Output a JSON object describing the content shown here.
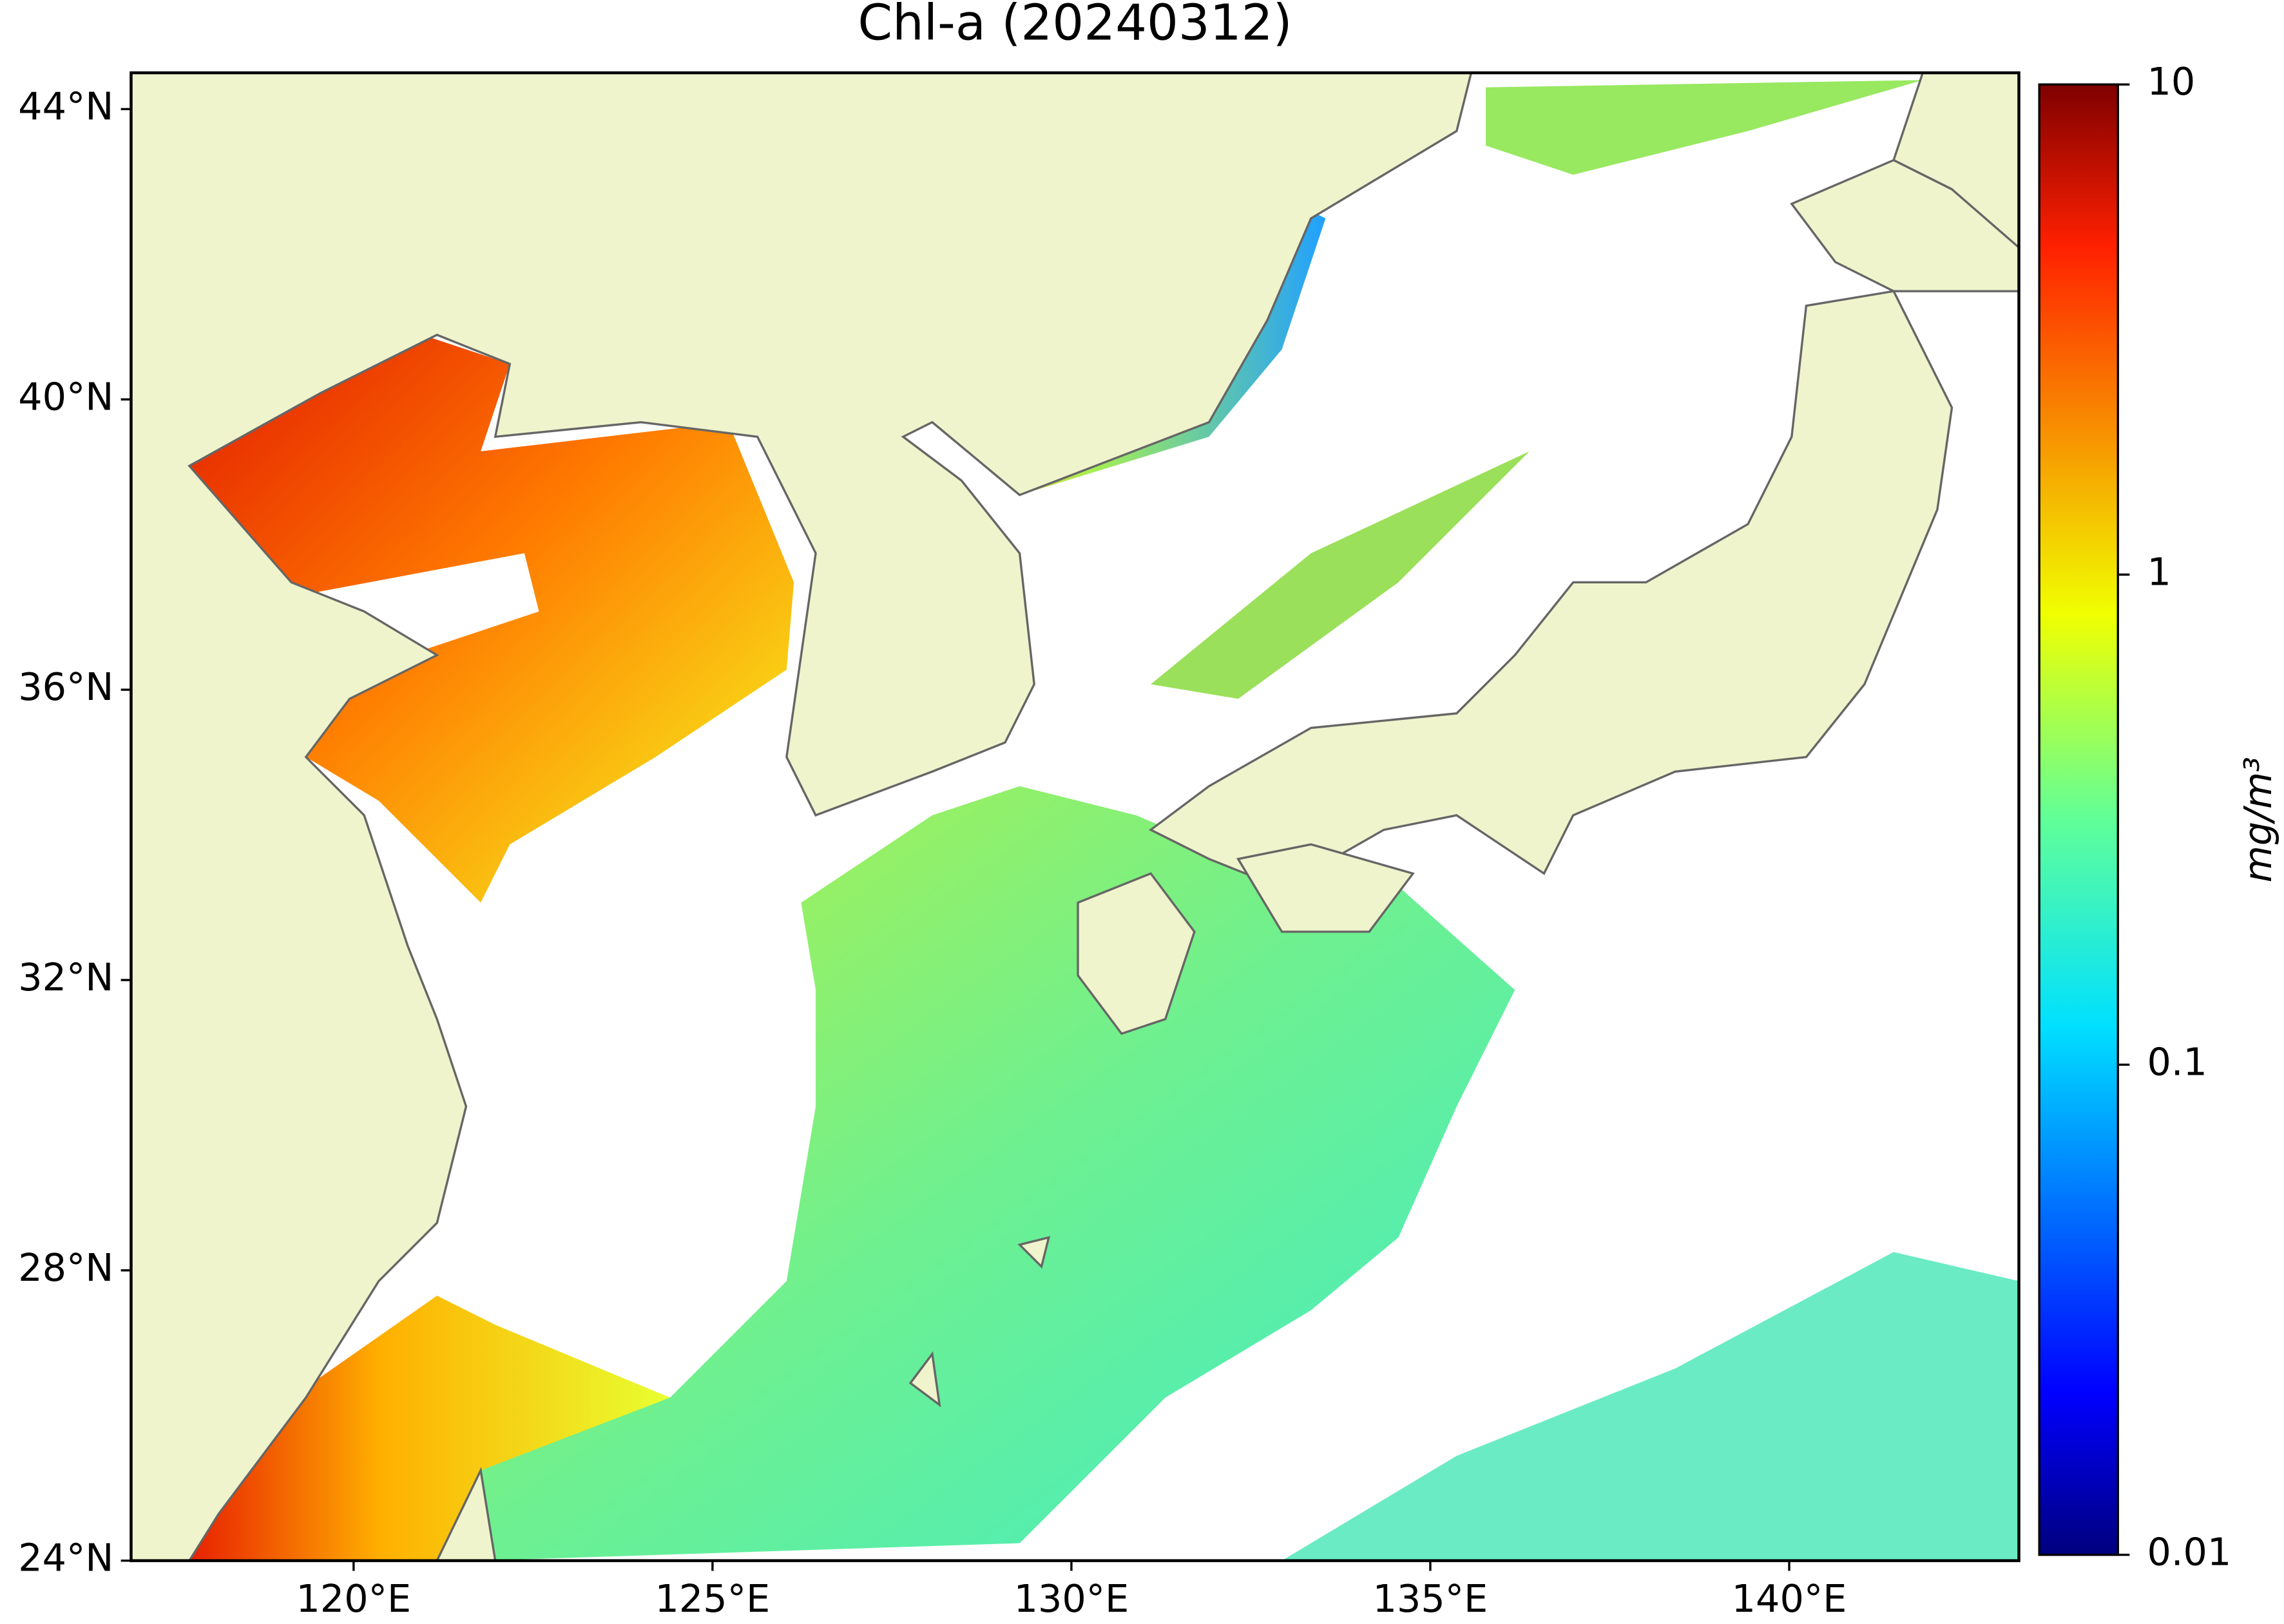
{
  "chart_data": {
    "type": "map",
    "title": "Chl-a (20240312)",
    "xlim": [
      116.9,
      143.2
    ],
    "xticks": [
      {
        "value": 120,
        "label": "120°E"
      },
      {
        "value": 125,
        "label": "125°E"
      },
      {
        "value": 130,
        "label": "130°E"
      },
      {
        "value": 135,
        "label": "135°E"
      },
      {
        "value": 140,
        "label": "140°E"
      }
    ],
    "ylim": [
      24,
      44.5
    ],
    "yticks": [
      {
        "value": 24,
        "label": "24°N"
      },
      {
        "value": 28,
        "label": "28°N"
      },
      {
        "value": 32,
        "label": "32°N"
      },
      {
        "value": 36,
        "label": "36°N"
      },
      {
        "value": 40,
        "label": "40°N"
      },
      {
        "value": 44,
        "label": "44°N"
      }
    ],
    "colorbar": {
      "label": "mg/m³",
      "log_scale": true,
      "colormap": "jet",
      "lim": [
        0.01,
        10
      ],
      "ticks": [
        0.01,
        0.1,
        1,
        10
      ]
    }
  }
}
